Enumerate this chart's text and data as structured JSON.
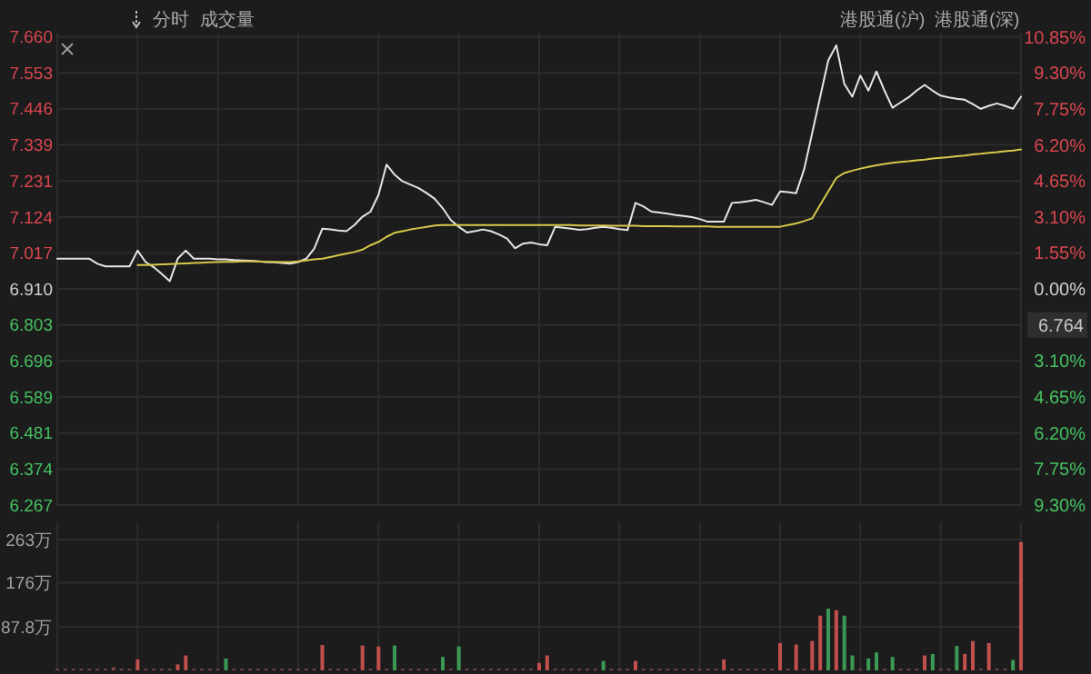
{
  "chart_data": [
    {
      "type": "line",
      "annotations": [
        "分时",
        "成交量",
        "港股通(沪)",
        "港股通(深)",
        "6.764"
      ],
      "categories": [
        null,
        null,
        null,
        null,
        null,
        null,
        null,
        null,
        null,
        null,
        null,
        null,
        null,
        null,
        null,
        null,
        null,
        null,
        null,
        null,
        null,
        null,
        null,
        null,
        null,
        null,
        null,
        null,
        null,
        null,
        null,
        null,
        null,
        null,
        null,
        null,
        null,
        null,
        null,
        null,
        null,
        null,
        null,
        null,
        null,
        null,
        null,
        null,
        null,
        null,
        null,
        null,
        null,
        null,
        null,
        null,
        null,
        null,
        null,
        null,
        null,
        null,
        null,
        null,
        null,
        null,
        null,
        null,
        null,
        null,
        null,
        null,
        null,
        null,
        null,
        null,
        null,
        null,
        null,
        null,
        null,
        null,
        null,
        null,
        null,
        null,
        null,
        null,
        null,
        null,
        null,
        null,
        null,
        null,
        null,
        null,
        null,
        null,
        null,
        null,
        null,
        null,
        null,
        null,
        null,
        null,
        null,
        null,
        null,
        null,
        null,
        null,
        null,
        null,
        null,
        null,
        null,
        null,
        null,
        null,
        null
      ],
      "ylim": [
        6.267,
        7.66
      ],
      "yticks": [
        {
          "value": 7.66,
          "label": "7.660"
        },
        7.553,
        7.446,
        7.339,
        7.231,
        7.124,
        7.017,
        {
          "value": 6.91,
          "label": "6.910"
        },
        6.803,
        6.696,
        6.589,
        6.481,
        6.374,
        6.267
      ],
      "y2lim": [
        -9.3,
        10.85
      ],
      "y2ticks": [
        {
          "value": 10.85,
          "label": "10.85%"
        },
        {
          "value": 9.3,
          "label": "9.30%"
        },
        {
          "value": 7.75,
          "label": "7.75%"
        },
        {
          "value": 6.2,
          "label": "6.20%"
        },
        {
          "value": 4.65,
          "label": "4.65%"
        },
        {
          "value": 3.1,
          "label": "3.10%"
        },
        {
          "value": 1.55,
          "label": "1.55%"
        },
        {
          "value": 0,
          "label": "0.00%"
        },
        {
          "value": -1.55,
          "label": null
        },
        {
          "value": -3.1,
          "label": "3.10%"
        },
        {
          "value": -4.65,
          "label": "4.65%"
        },
        {
          "value": -6.2,
          "label": "6.20%"
        },
        {
          "value": -7.75,
          "label": "7.75%"
        },
        {
          "value": -9.3,
          "label": "9.30%"
        }
      ],
      "grid": true,
      "tick_labels": "y",
      "series": [
        {
          "color": "#e6e6e6",
          "values": [
            7.0,
            7.0,
            7.0,
            7.0,
            7.0,
            6.985,
            6.977,
            6.977,
            6.977,
            6.977,
            7.024,
            6.99,
            6.975,
            6.955,
            6.933,
            7.0,
            7.024,
            7.0,
            7.0,
            7.0,
            6.998,
            6.998,
            6.996,
            6.995,
            6.994,
            6.992,
            6.99,
            6.989,
            6.987,
            6.985,
            6.99,
            7.0,
            7.03,
            7.089,
            7.087,
            7.084,
            7.082,
            7.1,
            7.125,
            7.14,
            7.19,
            7.28,
            7.25,
            7.23,
            7.22,
            7.21,
            7.195,
            7.178,
            7.15,
            7.115,
            7.095,
            7.078,
            7.082,
            7.087,
            7.082,
            7.072,
            7.06,
            7.031,
            7.045,
            7.048,
            7.043,
            7.04,
            7.095,
            7.092,
            7.089,
            7.086,
            7.088,
            7.092,
            7.095,
            7.092,
            7.088,
            7.085,
            7.166,
            7.155,
            7.14,
            7.137,
            7.134,
            7.13,
            7.127,
            7.124,
            7.118,
            7.11,
            7.11,
            7.11,
            7.166,
            7.168,
            7.171,
            7.175,
            7.168,
            7.16,
            7.2,
            7.198,
            7.195,
            7.266,
            7.374,
            7.482,
            7.59,
            7.635,
            7.52,
            7.482,
            7.545,
            7.5,
            7.557,
            7.5,
            7.449,
            7.465,
            7.48,
            7.5,
            7.517,
            7.5,
            7.485,
            7.48,
            7.476,
            7.473,
            7.46,
            7.446,
            7.455,
            7.462,
            7.455,
            7.446,
            7.482
          ]
        },
        {
          "color": "#d6c94a",
          "values": [
            null,
            null,
            null,
            null,
            null,
            null,
            null,
            null,
            null,
            null,
            6.981,
            6.981,
            6.982,
            6.983,
            6.984,
            6.985,
            6.986,
            6.987,
            6.988,
            6.989,
            6.99,
            6.991,
            6.991,
            6.992,
            6.992,
            6.992,
            6.991,
            6.991,
            6.99,
            6.99,
            6.992,
            6.995,
            6.998,
            7.0,
            7.005,
            7.01,
            7.015,
            7.02,
            7.027,
            7.04,
            7.05,
            7.065,
            7.077,
            7.082,
            7.087,
            7.091,
            7.095,
            7.099,
            7.1,
            7.1,
            7.1,
            7.1,
            7.1,
            7.1,
            7.1,
            7.1,
            7.1,
            7.1,
            7.1,
            7.1,
            7.1,
            7.1,
            7.1,
            7.1,
            7.1,
            7.099,
            7.099,
            7.099,
            7.099,
            7.098,
            7.098,
            7.098,
            7.098,
            7.097,
            7.097,
            7.097,
            7.097,
            7.096,
            7.096,
            7.096,
            7.096,
            7.096,
            7.095,
            7.095,
            7.095,
            7.095,
            7.095,
            7.095,
            7.095,
            7.095,
            7.095,
            7.1,
            7.105,
            7.112,
            7.12,
            7.16,
            7.2,
            7.24,
            7.255,
            7.262,
            7.268,
            7.273,
            7.278,
            7.282,
            7.285,
            7.288,
            7.29,
            7.293,
            7.295,
            7.298,
            7.3,
            7.302,
            7.305,
            7.307,
            7.31,
            7.312,
            7.315,
            7.317,
            7.32,
            7.322,
            7.325
          ]
        }
      ]
    },
    {
      "type": "bar",
      "categories": [
        null,
        null,
        null,
        null,
        null,
        null,
        null,
        null,
        null,
        null,
        null,
        null,
        null,
        null,
        null,
        null,
        null,
        null,
        null,
        null,
        null,
        null,
        null,
        null,
        null,
        null,
        null,
        null,
        null,
        null,
        null,
        null,
        null,
        null,
        null,
        null,
        null,
        null,
        null,
        null,
        null,
        null,
        null,
        null,
        null,
        null,
        null,
        null,
        null,
        null,
        null,
        null,
        null,
        null,
        null,
        null,
        null,
        null,
        null,
        null,
        null,
        null,
        null,
        null,
        null,
        null,
        null,
        null,
        null,
        null,
        null,
        null,
        null,
        null,
        null,
        null,
        null,
        null,
        null,
        null,
        null,
        null,
        null,
        null,
        null,
        null,
        null,
        null,
        null,
        null,
        null,
        null,
        null,
        null,
        null,
        null,
        null,
        null,
        null,
        null,
        null,
        null,
        null,
        null,
        null,
        null,
        null,
        null,
        null,
        null,
        null,
        null,
        null,
        null,
        null,
        null,
        null,
        null,
        null,
        null,
        null
      ],
      "ylim": [
        0,
        290
      ],
      "yticks": [
        {
          "value": 263,
          "label": "263万"
        },
        {
          "value": 176,
          "label": "176万"
        },
        {
          "value": 87.8,
          "label": "87.8万"
        }
      ],
      "grid": true,
      "tick_labels": "y",
      "values": [
        3,
        3,
        3,
        3,
        3,
        3,
        3,
        6,
        3,
        3,
        22,
        3,
        3,
        3,
        3,
        12,
        30,
        3,
        3,
        3,
        3,
        24,
        3,
        3,
        3,
        3,
        3,
        3,
        3,
        3,
        3,
        3,
        3,
        51,
        3,
        3,
        3,
        3,
        50,
        3,
        48,
        3,
        50,
        3,
        3,
        3,
        3,
        3,
        27,
        3,
        48,
        3,
        3,
        3,
        3,
        3,
        3,
        3,
        3,
        3,
        15,
        30,
        3,
        3,
        3,
        3,
        3,
        3,
        19,
        3,
        3,
        3,
        19,
        3,
        3,
        3,
        3,
        3,
        3,
        3,
        3,
        3,
        3,
        22,
        3,
        3,
        3,
        3,
        3,
        3,
        55,
        3,
        52,
        3,
        59,
        110,
        124,
        121,
        110,
        30,
        3,
        24,
        36,
        3,
        27,
        3,
        3,
        3,
        30,
        33,
        3,
        3,
        49,
        33,
        59,
        3,
        55,
        3,
        3,
        21,
        258
      ],
      "colors": [
        "#7d4a48",
        "#7d4a48",
        "#7d4a48",
        "#7d4a48",
        "#7d4a48",
        "#7d4a48",
        "#7d4a48",
        "#7d4a48",
        "#7d4a48",
        "#7d4a48",
        "#c0504d",
        "#7d4a48",
        "#7d4a48",
        "#7d4a48",
        "#7d4a48",
        "#c0504d",
        "#c0504d",
        "#7d4a48",
        "#7d4a48",
        "#7d4a48",
        "#7d4a48",
        "#3a9a55",
        "#7d4a48",
        "#7d4a48",
        "#7d4a48",
        "#7d4a48",
        "#7d4a48",
        "#7d4a48",
        "#7d4a48",
        "#7d4a48",
        "#7d4a48",
        "#7d4a48",
        "#7d4a48",
        "#c0504d",
        "#7d4a48",
        "#7d4a48",
        "#7d4a48",
        "#7d4a48",
        "#c0504d",
        "#7d4a48",
        "#c0504d",
        "#7d4a48",
        "#3a9a55",
        "#7d4a48",
        "#7d4a48",
        "#7d4a48",
        "#7d4a48",
        "#7d4a48",
        "#3a9a55",
        "#7d4a48",
        "#3a9a55",
        "#7d4a48",
        "#7d4a48",
        "#7d4a48",
        "#7d4a48",
        "#7d4a48",
        "#7d4a48",
        "#7d4a48",
        "#7d4a48",
        "#7d4a48",
        "#c0504d",
        "#c0504d",
        "#7d4a48",
        "#7d4a48",
        "#7d4a48",
        "#7d4a48",
        "#7d4a48",
        "#7d4a48",
        "#3a9a55",
        "#7d4a48",
        "#7d4a48",
        "#7d4a48",
        "#c0504d",
        "#7d4a48",
        "#7d4a48",
        "#7d4a48",
        "#7d4a48",
        "#7d4a48",
        "#7d4a48",
        "#7d4a48",
        "#7d4a48",
        "#7d4a48",
        "#7d4a48",
        "#c0504d",
        "#7d4a48",
        "#7d4a48",
        "#7d4a48",
        "#7d4a48",
        "#7d4a48",
        "#7d4a48",
        "#c0504d",
        "#7d4a48",
        "#c0504d",
        "#7d4a48",
        "#c0504d",
        "#c0504d",
        "#3a9a55",
        "#c0504d",
        "#3a9a55",
        "#3a9a55",
        "#7d4a48",
        "#3a9a55",
        "#3a9a55",
        "#7d4a48",
        "#3a9a55",
        "#7d4a48",
        "#7d4a48",
        "#7d4a48",
        "#c0504d",
        "#3a9a55",
        "#7d4a48",
        "#7d4a48",
        "#3a9a55",
        "#c0504d",
        "#c0504d",
        "#7d4a48",
        "#c0504d",
        "#7d4a48",
        "#7d4a48",
        "#3a9a55",
        "#c0504d"
      ]
    }
  ]
}
